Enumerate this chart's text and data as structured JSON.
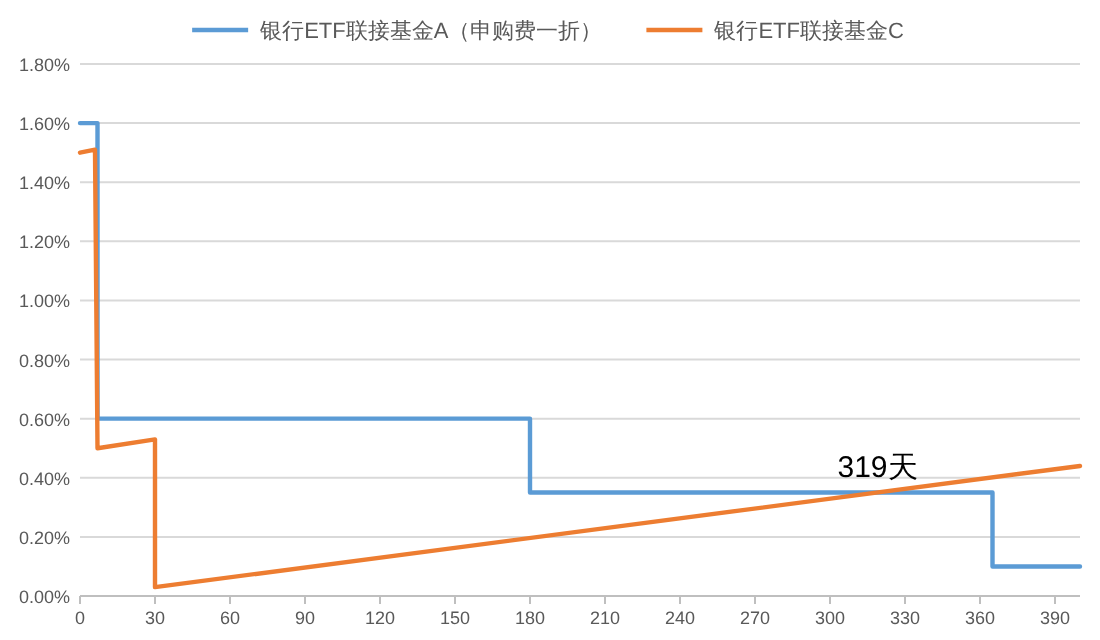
{
  "chart_data": {
    "type": "line",
    "legend": "top",
    "grid": "y",
    "marker": "none",
    "line_style": "solid",
    "xlim": [
      0,
      400
    ],
    "xticks": [
      0,
      30,
      60,
      90,
      120,
      150,
      180,
      210,
      240,
      270,
      300,
      330,
      360,
      390
    ],
    "ylim": [
      0,
      1.8
    ],
    "yticks": [
      {
        "value": 0,
        "label": "0.00%"
      },
      {
        "value": 0.2,
        "label": "0.20%"
      },
      {
        "value": 0.4,
        "label": "0.40%"
      },
      {
        "value": 0.6,
        "label": "0.60%"
      },
      {
        "value": 0.8,
        "label": "0.80%"
      },
      {
        "value": 1.0,
        "label": "1.00%"
      },
      {
        "value": 1.2,
        "label": "1.20%"
      },
      {
        "value": 1.4,
        "label": "1.40%"
      },
      {
        "value": 1.6,
        "label": "1.60%"
      },
      {
        "value": 1.8,
        "label": "1.80%"
      }
    ],
    "series": [
      {
        "name": "银行ETF联接基金A（申购费一折）",
        "color": "#5b9bd5",
        "x": [
          0,
          7,
          7,
          180,
          180,
          365,
          365,
          400
        ],
        "values": [
          1.6,
          1.6,
          0.6,
          0.6,
          0.35,
          0.35,
          0.1,
          0.1
        ]
      },
      {
        "name": "银行ETF联接基金C",
        "color": "#ed7d31",
        "x": [
          0,
          6,
          7,
          30,
          30,
          400
        ],
        "values": [
          1.5,
          1.51,
          0.5,
          0.53,
          0.03,
          0.44
        ]
      }
    ],
    "annotations": [
      {
        "text": "319天",
        "x": 319,
        "y": 0.35
      }
    ]
  }
}
